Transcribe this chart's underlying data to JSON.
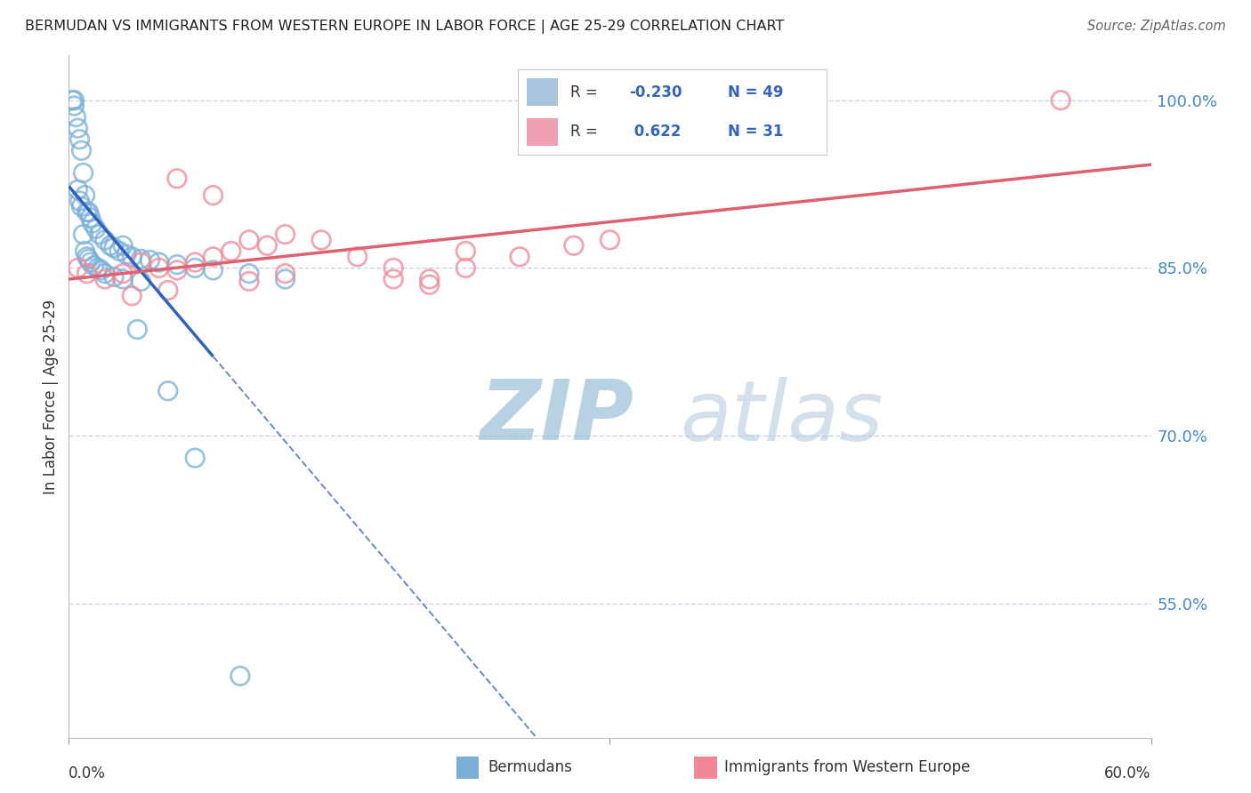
{
  "title": "BERMUDAN VS IMMIGRANTS FROM WESTERN EUROPE IN LABOR FORCE | AGE 25-29 CORRELATION CHART",
  "source": "Source: ZipAtlas.com",
  "ylabel": "In Labor Force | Age 25-29",
  "y_ticks": [
    55.0,
    70.0,
    85.0,
    100.0
  ],
  "y_tick_labels": [
    "55.0%",
    "70.0%",
    "85.0%",
    "100.0%"
  ],
  "xlim": [
    0.0,
    60.0
  ],
  "ylim": [
    43.0,
    104.0
  ],
  "legend_entry1_color": "#a8c4e0",
  "legend_entry2_color": "#f0a0b0",
  "bermudans_r": -0.23,
  "bermudans_n": 49,
  "western_europe_r": 0.622,
  "western_europe_n": 31,
  "dot_color_blue": "#7ab0d8",
  "dot_color_pink": "#f08898",
  "trendline_color_blue": "#3060c0",
  "trendline_color_pink": "#e06070",
  "watermark_zip": "ZIP",
  "watermark_atlas": "atlas",
  "watermark_color": "#c8ddf0",
  "background_color": "#ffffff",
  "grid_color": "#c8d4e8",
  "blue_x": [
    0.2,
    0.3,
    0.3,
    0.4,
    0.5,
    0.6,
    0.7,
    0.8,
    0.9,
    1.0,
    1.1,
    1.2,
    1.3,
    1.5,
    1.7,
    2.0,
    2.3,
    2.5,
    2.8,
    3.2,
    3.5,
    4.0,
    4.5,
    5.0,
    6.0,
    7.0,
    8.0,
    10.0,
    12.0,
    3.0,
    0.5,
    0.6,
    0.7,
    0.8,
    0.9,
    1.0,
    1.1,
    1.2,
    1.4,
    1.6,
    1.8,
    2.0,
    2.5,
    3.0,
    4.0,
    5.5,
    7.0,
    9.5,
    3.8
  ],
  "blue_y": [
    100.0,
    100.0,
    99.5,
    98.5,
    97.5,
    96.5,
    95.5,
    93.5,
    91.5,
    90.0,
    90.0,
    89.5,
    89.0,
    88.5,
    88.0,
    87.5,
    87.0,
    86.8,
    86.5,
    86.2,
    86.0,
    85.8,
    85.7,
    85.5,
    85.3,
    85.0,
    84.8,
    84.5,
    84.0,
    87.0,
    92.0,
    91.0,
    90.5,
    88.0,
    86.5,
    86.0,
    85.8,
    85.5,
    85.2,
    85.0,
    84.8,
    84.5,
    84.2,
    84.0,
    83.8,
    74.0,
    68.0,
    48.5,
    79.5
  ],
  "pink_x": [
    0.5,
    1.0,
    2.0,
    3.0,
    4.0,
    5.0,
    6.0,
    7.0,
    8.0,
    9.0,
    10.0,
    11.0,
    12.0,
    14.0,
    16.0,
    18.0,
    20.0,
    22.0,
    25.0,
    28.0,
    30.0,
    18.0,
    20.0,
    22.0,
    10.0,
    12.0,
    6.0,
    8.0,
    3.5,
    5.5,
    55.0
  ],
  "pink_y": [
    85.0,
    84.5,
    84.0,
    84.5,
    85.5,
    85.0,
    84.8,
    85.5,
    86.0,
    86.5,
    87.5,
    87.0,
    88.0,
    87.5,
    86.0,
    85.0,
    84.0,
    86.5,
    86.0,
    87.0,
    87.5,
    84.0,
    83.5,
    85.0,
    83.8,
    84.5,
    93.0,
    91.5,
    82.5,
    83.0,
    100.0
  ]
}
